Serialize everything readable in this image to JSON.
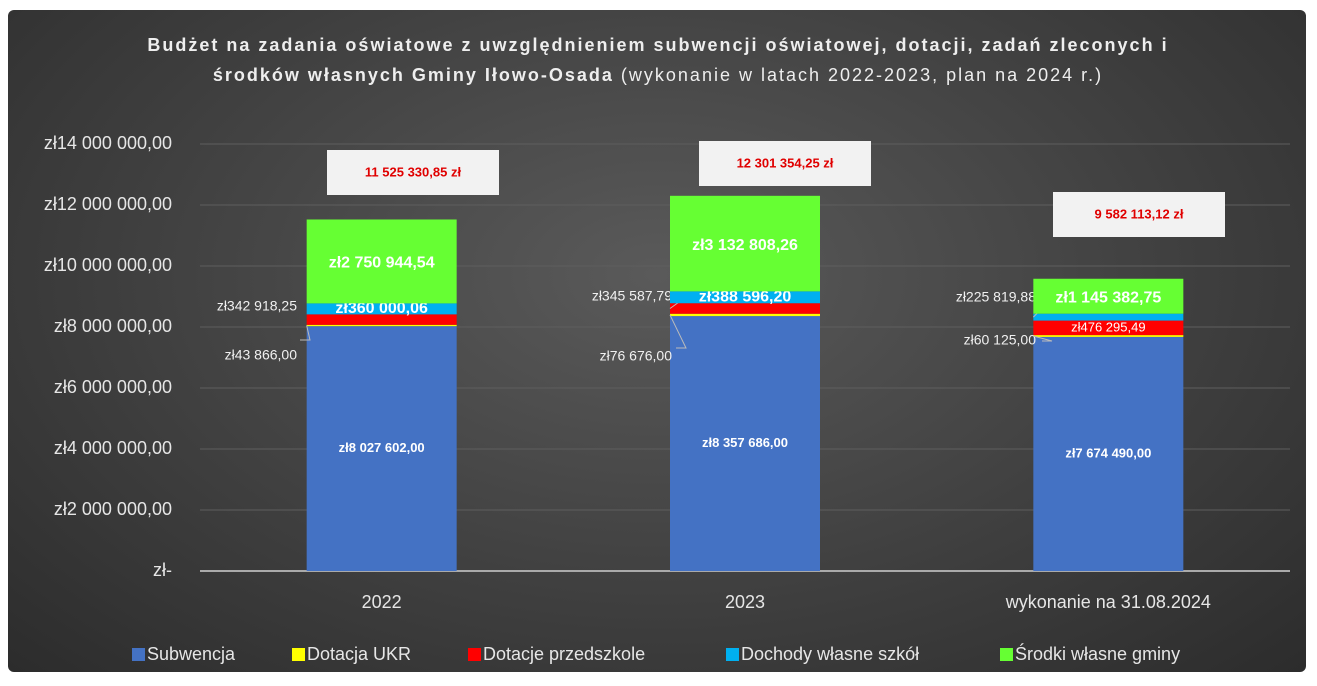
{
  "chart_data": {
    "type": "stacked_bar",
    "title": "Budżet na zadania oświatowe z uwzględnieniem subwencji oświatowej, dotacji, zadań zleconych i środków własnych Gminy Iłowo-Osada",
    "subtitle": "(wykonanie w latach 2022-2023, plan na 2024 r.)",
    "categories": [
      "2022",
      "2023",
      "wykonanie na 31.08.2024"
    ],
    "series": [
      {
        "name": "Subwencja",
        "color": "#4472c4",
        "values": [
          8027602.0,
          8357686.0,
          7674490.0
        ],
        "value_labels": [
          "zł8 027 602,00",
          "zł8 357 686,00",
          "zł7 674 490,00"
        ]
      },
      {
        "name": "Dotacja UKR",
        "color": "#ffff00",
        "values": [
          43866.0,
          76676.0,
          60125.0
        ],
        "value_labels": [
          "zł43 866,00",
          "zł76 676,00",
          "zł60 125,00"
        ]
      },
      {
        "name": "Dotacje przedszkole",
        "color": "#ff0000",
        "values": [
          342918.25,
          345587.79,
          476295.49
        ],
        "value_labels": [
          "zł342 918,25",
          "zł345 587,79",
          "zł476 295,49"
        ]
      },
      {
        "name": "Dochody własne szkół",
        "color": "#00b0f0",
        "values": [
          360000.06,
          388596.2,
          225819.88
        ],
        "value_labels": [
          "zł360 000,06",
          "zł388 596,20",
          "zł225 819,88"
        ]
      },
      {
        "name": "Środki własne gminy",
        "color": "#66ff33",
        "values": [
          2750944.54,
          3132808.26,
          1145382.75
        ],
        "value_labels": [
          "zł2 750 944,54",
          "zł3 132 808,26",
          "zł1 145 382,75"
        ]
      }
    ],
    "totals": {
      "values": [
        11525330.85,
        12301354.25,
        9582113.12
      ],
      "value_labels": [
        "11 525 330,85 zł",
        "12 301 354,25 zł",
        "9 582 113,12 zł"
      ]
    },
    "ylim": [
      0,
      14000000
    ],
    "yticks": [
      {
        "value": 0,
        "label": "zł-"
      },
      {
        "value": 2000000,
        "label": "zł2 000 000,00"
      },
      {
        "value": 4000000,
        "label": "zł4 000 000,00"
      },
      {
        "value": 6000000,
        "label": "zł6 000 000,00"
      },
      {
        "value": 8000000,
        "label": "zł8 000 000,00"
      },
      {
        "value": 10000000,
        "label": "zł10 000 000,00"
      },
      {
        "value": 12000000,
        "label": "zł12 000 000,00"
      },
      {
        "value": 14000000,
        "label": "zł14 000 000,00"
      }
    ],
    "grid": true,
    "legend": "bottom"
  }
}
